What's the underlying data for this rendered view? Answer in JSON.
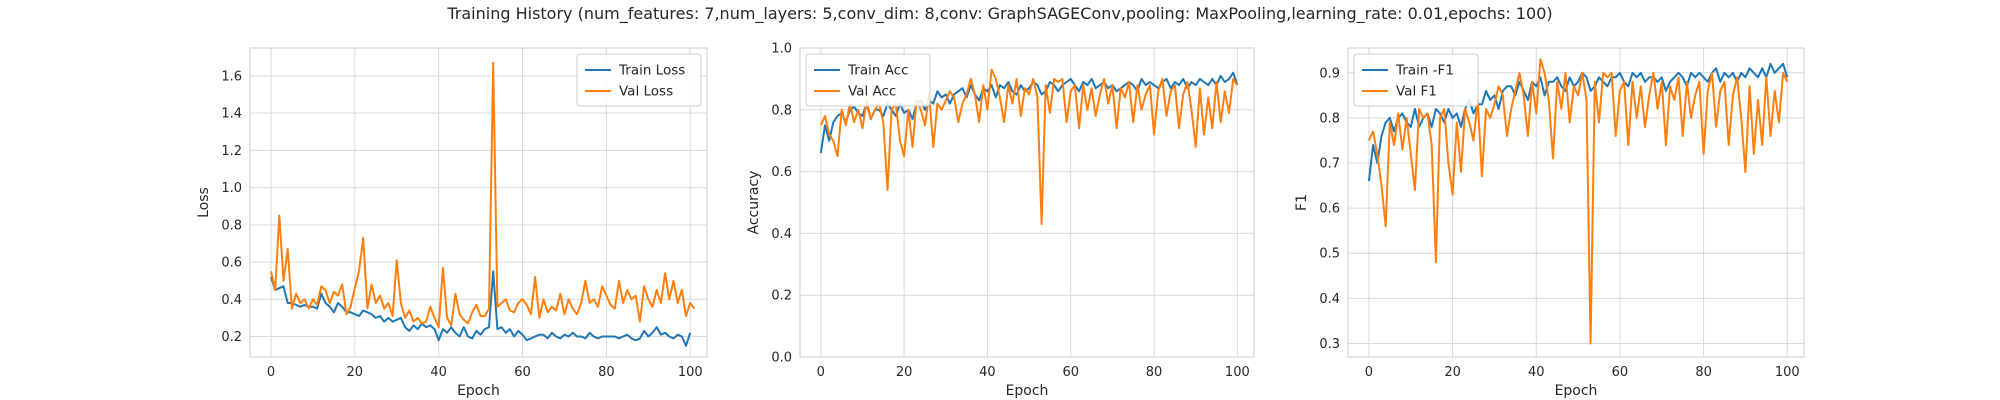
{
  "figure": {
    "suptitle": "Training History (num_features: 7,num_layers: 5,conv_dim: 8,conv: GraphSAGEConv,pooling: MaxPooling,learning_rate: 0.01,epochs: 100)"
  },
  "colors": {
    "train": "#1f77b4",
    "val": "#ff7f0e",
    "grid": "#d9d9d9",
    "spine": "#cccccc"
  },
  "chart_data": [
    {
      "type": "line",
      "xlabel": "Epoch",
      "ylabel": "Loss",
      "xlim": [
        -5,
        104
      ],
      "ylim": [
        0.09,
        1.75
      ],
      "xticks": [
        0,
        20,
        40,
        60,
        80,
        100
      ],
      "yticks": [
        0.2,
        0.4,
        0.6,
        0.8,
        1.0,
        1.2,
        1.4,
        1.6
      ],
      "yticklabels": [
        "0.2",
        "0.4",
        "0.6",
        "0.8",
        "1.0",
        "1.2",
        "1.4",
        "1.6"
      ],
      "grid": true,
      "legend": "upper right",
      "series": [
        {
          "name": "Train Loss",
          "values": [
            0.52,
            0.45,
            0.46,
            0.47,
            0.38,
            0.38,
            0.37,
            0.36,
            0.37,
            0.36,
            0.36,
            0.35,
            0.43,
            0.38,
            0.36,
            0.33,
            0.38,
            0.36,
            0.33,
            0.33,
            0.32,
            0.31,
            0.34,
            0.33,
            0.32,
            0.3,
            0.31,
            0.28,
            0.3,
            0.28,
            0.29,
            0.3,
            0.25,
            0.23,
            0.26,
            0.24,
            0.27,
            0.25,
            0.26,
            0.24,
            0.18,
            0.24,
            0.22,
            0.25,
            0.22,
            0.2,
            0.25,
            0.2,
            0.19,
            0.23,
            0.21,
            0.24,
            0.25,
            0.55,
            0.24,
            0.25,
            0.22,
            0.24,
            0.2,
            0.23,
            0.21,
            0.18,
            0.19,
            0.2,
            0.21,
            0.21,
            0.19,
            0.22,
            0.2,
            0.19,
            0.21,
            0.2,
            0.22,
            0.2,
            0.2,
            0.19,
            0.22,
            0.2,
            0.19,
            0.2,
            0.2,
            0.2,
            0.2,
            0.19,
            0.2,
            0.21,
            0.19,
            0.18,
            0.19,
            0.23,
            0.2,
            0.22,
            0.25,
            0.21,
            0.22,
            0.2,
            0.19,
            0.21,
            0.2,
            0.15,
            0.22
          ]
        },
        {
          "name": "Val Loss",
          "values": [
            0.55,
            0.45,
            0.85,
            0.5,
            0.67,
            0.35,
            0.43,
            0.38,
            0.4,
            0.35,
            0.4,
            0.37,
            0.47,
            0.45,
            0.38,
            0.44,
            0.42,
            0.48,
            0.32,
            0.36,
            0.46,
            0.55,
            0.73,
            0.35,
            0.48,
            0.38,
            0.42,
            0.35,
            0.38,
            0.31,
            0.61,
            0.38,
            0.3,
            0.34,
            0.28,
            0.3,
            0.27,
            0.28,
            0.36,
            0.3,
            0.25,
            0.57,
            0.3,
            0.26,
            0.43,
            0.32,
            0.29,
            0.27,
            0.33,
            0.37,
            0.31,
            0.31,
            0.35,
            1.67,
            0.36,
            0.38,
            0.4,
            0.34,
            0.33,
            0.38,
            0.4,
            0.37,
            0.32,
            0.52,
            0.3,
            0.4,
            0.33,
            0.36,
            0.34,
            0.43,
            0.32,
            0.4,
            0.35,
            0.32,
            0.38,
            0.5,
            0.38,
            0.4,
            0.36,
            0.47,
            0.42,
            0.37,
            0.35,
            0.5,
            0.38,
            0.45,
            0.4,
            0.42,
            0.28,
            0.47,
            0.4,
            0.36,
            0.45,
            0.38,
            0.54,
            0.4,
            0.5,
            0.38,
            0.45,
            0.31,
            0.38,
            0.35
          ]
        }
      ]
    },
    {
      "type": "line",
      "xlabel": "Epoch",
      "ylabel": "Accuracy",
      "xlim": [
        -5,
        104
      ],
      "ylim": [
        0.0,
        1.0
      ],
      "xticks": [
        0,
        20,
        40,
        60,
        80,
        100
      ],
      "yticks": [
        0.0,
        0.2,
        0.4,
        0.6,
        0.8,
        1.0
      ],
      "yticklabels": [
        "0.0",
        "0.2",
        "0.4",
        "0.6",
        "0.8",
        "1.0"
      ],
      "grid": true,
      "legend": "upper left",
      "series": [
        {
          "name": "Train Acc",
          "values": [
            0.66,
            0.75,
            0.7,
            0.76,
            0.78,
            0.79,
            0.76,
            0.8,
            0.81,
            0.79,
            0.78,
            0.82,
            0.77,
            0.8,
            0.8,
            0.78,
            0.82,
            0.8,
            0.78,
            0.82,
            0.79,
            0.8,
            0.77,
            0.82,
            0.83,
            0.8,
            0.83,
            0.82,
            0.86,
            0.84,
            0.85,
            0.82,
            0.85,
            0.86,
            0.87,
            0.84,
            0.88,
            0.85,
            0.83,
            0.87,
            0.86,
            0.88,
            0.84,
            0.88,
            0.87,
            0.89,
            0.86,
            0.85,
            0.88,
            0.86,
            0.87,
            0.89,
            0.88,
            0.85,
            0.86,
            0.89,
            0.88,
            0.86,
            0.88,
            0.89,
            0.9,
            0.88,
            0.86,
            0.89,
            0.88,
            0.9,
            0.87,
            0.88,
            0.89,
            0.87,
            0.88,
            0.86,
            0.87,
            0.88,
            0.89,
            0.88,
            0.86,
            0.9,
            0.88,
            0.89,
            0.88,
            0.87,
            0.89,
            0.9,
            0.87,
            0.89,
            0.88,
            0.9,
            0.87,
            0.89,
            0.88,
            0.9,
            0.89,
            0.88,
            0.9,
            0.88,
            0.91,
            0.89,
            0.9,
            0.92,
            0.88
          ]
        },
        {
          "name": "Val Acc",
          "values": [
            0.75,
            0.78,
            0.72,
            0.7,
            0.65,
            0.8,
            0.75,
            0.82,
            0.76,
            0.8,
            0.74,
            0.83,
            0.77,
            0.8,
            0.82,
            0.76,
            0.54,
            0.8,
            0.82,
            0.7,
            0.65,
            0.8,
            0.68,
            0.83,
            0.8,
            0.75,
            0.85,
            0.68,
            0.82,
            0.8,
            0.83,
            0.86,
            0.84,
            0.76,
            0.82,
            0.85,
            0.9,
            0.85,
            0.76,
            0.88,
            0.8,
            0.93,
            0.9,
            0.84,
            0.76,
            0.88,
            0.82,
            0.9,
            0.78,
            0.87,
            0.85,
            0.9,
            0.84,
            0.43,
            0.88,
            0.79,
            0.9,
            0.89,
            0.9,
            0.76,
            0.86,
            0.88,
            0.74,
            0.88,
            0.8,
            0.87,
            0.78,
            0.85,
            0.9,
            0.82,
            0.88,
            0.74,
            0.87,
            0.84,
            0.89,
            0.76,
            0.88,
            0.8,
            0.85,
            0.88,
            0.72,
            0.86,
            0.9,
            0.78,
            0.86,
            0.88,
            0.74,
            0.85,
            0.89,
            0.8,
            0.68,
            0.87,
            0.72,
            0.84,
            0.74,
            0.89,
            0.76,
            0.86,
            0.79,
            0.9,
            0.88
          ]
        }
      ]
    },
    {
      "type": "line",
      "xlabel": "Epoch",
      "ylabel": "F1",
      "xlim": [
        -5,
        104
      ],
      "ylim": [
        0.27,
        0.955
      ],
      "xticks": [
        0,
        20,
        40,
        60,
        80,
        100
      ],
      "yticks": [
        0.3,
        0.4,
        0.5,
        0.6,
        0.7,
        0.8,
        0.9
      ],
      "yticklabels": [
        "0.3",
        "0.4",
        "0.5",
        "0.6",
        "0.7",
        "0.8",
        "0.9"
      ],
      "grid": true,
      "legend": "upper left",
      "series": [
        {
          "name": "Train -F1",
          "values": [
            0.66,
            0.74,
            0.7,
            0.76,
            0.79,
            0.8,
            0.77,
            0.8,
            0.81,
            0.79,
            0.78,
            0.82,
            0.78,
            0.8,
            0.81,
            0.78,
            0.82,
            0.81,
            0.79,
            0.82,
            0.8,
            0.81,
            0.78,
            0.82,
            0.84,
            0.81,
            0.83,
            0.83,
            0.86,
            0.84,
            0.85,
            0.82,
            0.86,
            0.87,
            0.87,
            0.85,
            0.88,
            0.86,
            0.84,
            0.88,
            0.87,
            0.89,
            0.85,
            0.88,
            0.88,
            0.89,
            0.87,
            0.86,
            0.89,
            0.87,
            0.88,
            0.9,
            0.89,
            0.86,
            0.87,
            0.89,
            0.88,
            0.87,
            0.89,
            0.89,
            0.9,
            0.88,
            0.87,
            0.9,
            0.89,
            0.9,
            0.88,
            0.89,
            0.89,
            0.88,
            0.89,
            0.86,
            0.88,
            0.89,
            0.9,
            0.89,
            0.87,
            0.9,
            0.89,
            0.9,
            0.89,
            0.88,
            0.9,
            0.91,
            0.88,
            0.9,
            0.89,
            0.9,
            0.88,
            0.9,
            0.89,
            0.91,
            0.9,
            0.89,
            0.91,
            0.89,
            0.92,
            0.9,
            0.91,
            0.92,
            0.89
          ]
        },
        {
          "name": "Val F1",
          "values": [
            0.75,
            0.77,
            0.72,
            0.65,
            0.56,
            0.79,
            0.74,
            0.81,
            0.73,
            0.8,
            0.72,
            0.64,
            0.82,
            0.8,
            0.81,
            0.74,
            0.48,
            0.8,
            0.82,
            0.7,
            0.63,
            0.79,
            0.68,
            0.82,
            0.79,
            0.75,
            0.84,
            0.67,
            0.82,
            0.8,
            0.83,
            0.87,
            0.85,
            0.76,
            0.82,
            0.86,
            0.9,
            0.85,
            0.76,
            0.88,
            0.81,
            0.93,
            0.9,
            0.84,
            0.71,
            0.88,
            0.82,
            0.9,
            0.79,
            0.87,
            0.85,
            0.9,
            0.84,
            0.3,
            0.88,
            0.79,
            0.9,
            0.89,
            0.9,
            0.76,
            0.86,
            0.88,
            0.74,
            0.88,
            0.8,
            0.87,
            0.78,
            0.85,
            0.9,
            0.82,
            0.88,
            0.74,
            0.87,
            0.84,
            0.89,
            0.76,
            0.88,
            0.8,
            0.85,
            0.88,
            0.72,
            0.86,
            0.9,
            0.78,
            0.86,
            0.88,
            0.74,
            0.85,
            0.89,
            0.8,
            0.68,
            0.87,
            0.72,
            0.84,
            0.74,
            0.89,
            0.76,
            0.86,
            0.79,
            0.9,
            0.88
          ]
        }
      ]
    }
  ]
}
